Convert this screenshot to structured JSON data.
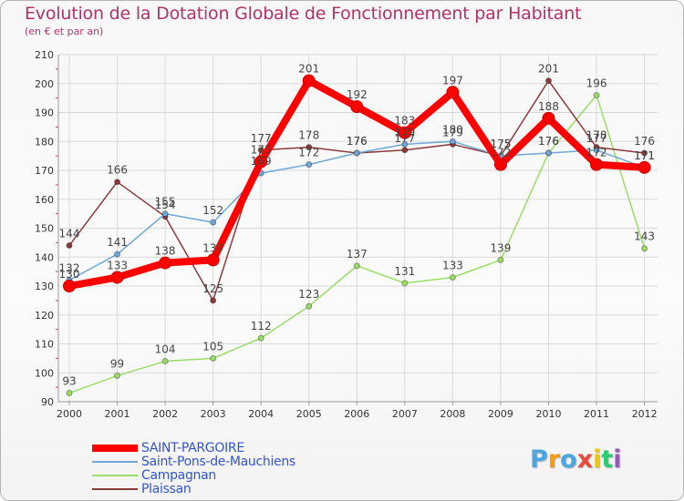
{
  "title": "Evolution de la Dotation Globale de Fonctionnement par Habitant",
  "subtitle": "(en € et par an)",
  "colors": {
    "title": "#b0336a",
    "grid": "#d9d9d9",
    "axis": "#999999",
    "tick_minor": "#c93a6e"
  },
  "chart_data": {
    "type": "line",
    "title": "Evolution de la Dotation Globale de Fonctionnement par Habitant",
    "subtitle": "(en € et par an)",
    "xlabel": "",
    "ylabel": "",
    "ylim": [
      90,
      210
    ],
    "yticks": [
      90,
      100,
      110,
      120,
      130,
      140,
      150,
      160,
      170,
      180,
      190,
      200,
      210
    ],
    "grid": true,
    "x": [
      "2000",
      "2001",
      "2002",
      "2003",
      "2004",
      "2005",
      "2006",
      "2007",
      "2008",
      "2009",
      "2010",
      "2011",
      "2012"
    ],
    "series": [
      {
        "name": "SAINT-PARGOIRE",
        "color": "#ff0000",
        "values": [
          130,
          133,
          138,
          139,
          173,
          201,
          192,
          183,
          197,
          172,
          188,
          172,
          171
        ],
        "labels": [
          "130",
          "133",
          "138",
          "139",
          "173",
          "201",
          "192",
          "183",
          "197",
          "172",
          "188",
          "172",
          "171"
        ]
      },
      {
        "name": "Saint-Pons-de-Mauchiens",
        "color": "#6fa8d8",
        "values": [
          132,
          141,
          155,
          152,
          169,
          172,
          176,
          179,
          180,
          175,
          176,
          177,
          171
        ],
        "labels": [
          "132",
          "141",
          "155",
          "152",
          "169",
          "172",
          "176",
          "179",
          "180",
          "175",
          "176",
          "177",
          "171"
        ]
      },
      {
        "name": "Campagnan",
        "color": "#99dd66",
        "values": [
          93,
          99,
          104,
          105,
          112,
          123,
          137,
          131,
          133,
          139,
          176,
          196,
          143
        ],
        "labels": [
          "93",
          "99",
          "104",
          "105",
          "112",
          "123",
          "137",
          "131",
          "133",
          "139",
          "176",
          "196",
          "143"
        ]
      },
      {
        "name": "Plaissan",
        "color": "#8b3a3a",
        "values": [
          144,
          166,
          154,
          125,
          177,
          178,
          176,
          177,
          179,
          175,
          201,
          178,
          176
        ],
        "labels": [
          "144",
          "166",
          "154",
          "125",
          "177",
          "178",
          "176",
          "177",
          "179",
          "175",
          "201",
          "178",
          "176"
        ]
      }
    ]
  },
  "legend": [
    {
      "label": "SAINT-PARGOIRE",
      "color": "#ff0000",
      "text_color": "#3355cc"
    },
    {
      "label": "Saint-Pons-de-Mauchiens",
      "color": "#6fa8d8",
      "text_color": "#3355cc"
    },
    {
      "label": "Campagnan",
      "color": "#99dd66",
      "text_color": "#3355cc"
    },
    {
      "label": "Plaissan",
      "color": "#8b3a3a",
      "text_color": "#3355cc"
    }
  ],
  "logo": {
    "letters": [
      "P",
      "r",
      "o",
      "x",
      "i",
      "t",
      "i"
    ],
    "colors": [
      "#4da6e0",
      "#f39c12",
      "#4da6e0",
      "#e74c3c",
      "#f1c40f",
      "#2ecc71",
      "#9b59b6"
    ]
  }
}
